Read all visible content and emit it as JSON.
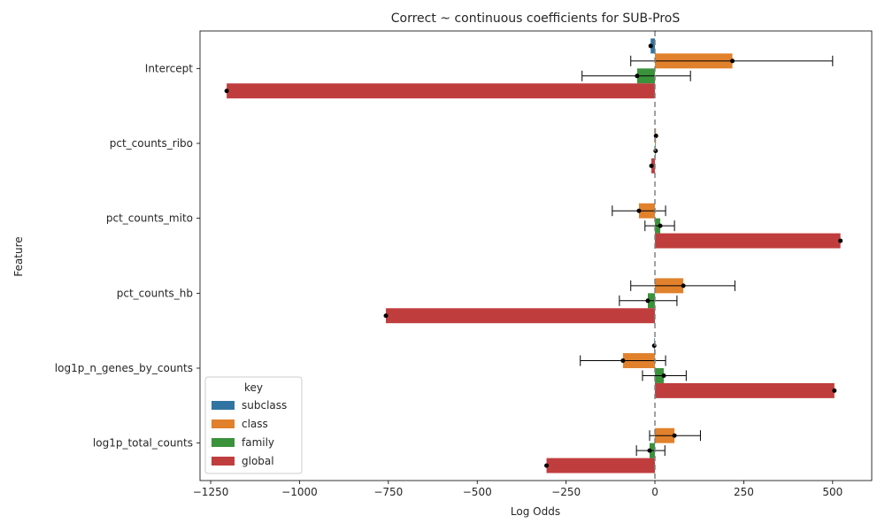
{
  "chart_data": {
    "type": "bar",
    "orientation": "horizontal",
    "title": "Correct ~ continuous coefficients for SUB-ProS",
    "xlabel": "Log Odds",
    "ylabel": "Feature",
    "xlim": [
      -1280,
      610
    ],
    "xticks": [
      -1250,
      -1000,
      -750,
      -500,
      -250,
      0,
      250,
      500
    ],
    "xtick_labels": [
      "−1250",
      "−1000",
      "−750",
      "−500",
      "−250",
      "0",
      "250",
      "500"
    ],
    "reference_line": 0,
    "legend": {
      "title": "key",
      "placement": "lower-left"
    },
    "categories": [
      "Intercept",
      "pct_counts_ribo",
      "pct_counts_mito",
      "pct_counts_hb",
      "log1p_n_genes_by_counts",
      "log1p_total_counts"
    ],
    "series": [
      {
        "name": "subclass",
        "color": "#3274a1",
        "values": [
          -12,
          0,
          0,
          0,
          -2,
          0
        ],
        "err_low": [
          null,
          null,
          null,
          null,
          null,
          null
        ],
        "err_high": [
          null,
          null,
          null,
          null,
          null,
          null
        ]
      },
      {
        "name": "class",
        "color": "#e1812c",
        "values": [
          218,
          3,
          -45,
          80,
          -90,
          55
        ],
        "err_low": [
          -68,
          null,
          -120,
          -68,
          -210,
          -15
        ],
        "err_high": [
          500,
          null,
          30,
          225,
          30,
          128
        ]
      },
      {
        "name": "family",
        "color": "#3a923a",
        "values": [
          -50,
          2,
          15,
          -20,
          25,
          -15
        ],
        "err_low": [
          -205,
          null,
          -28,
          -100,
          -35,
          -52
        ],
        "err_high": [
          100,
          null,
          55,
          62,
          88,
          28
        ]
      },
      {
        "name": "global",
        "color": "#c03d3e",
        "values": [
          -1205,
          -10,
          522,
          -757,
          505,
          -305
        ],
        "err_low": [
          null,
          null,
          null,
          null,
          null,
          null
        ],
        "err_high": [
          null,
          null,
          null,
          null,
          null,
          null
        ]
      }
    ]
  }
}
